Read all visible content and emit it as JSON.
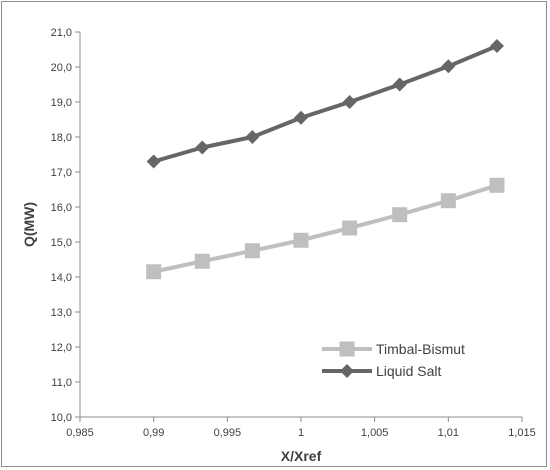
{
  "chart_data": {
    "type": "line",
    "xlabel": "X/Xref",
    "ylabel": "Q(MW)",
    "xlim": [
      0.985,
      1.015
    ],
    "ylim": [
      10.0,
      21.0
    ],
    "x_ticks": [
      "0,985",
      "0,99",
      "0,995",
      "1",
      "1,005",
      "1,01",
      "1,015"
    ],
    "y_ticks": [
      "10,0",
      "11,0",
      "12,0",
      "13,0",
      "14,0",
      "15,0",
      "16,0",
      "17,0",
      "18,0",
      "19,0",
      "20,0",
      "21,0"
    ],
    "grid": false,
    "legend": "bottom-right",
    "series": [
      {
        "name": "Timbal-Bismut",
        "marker": "square",
        "color": "#bfbfbf",
        "x": [
          0.99,
          0.9933,
          0.9967,
          1.0,
          1.0033,
          1.0067,
          1.01,
          1.0133
        ],
        "y": [
          14.15,
          14.45,
          14.75,
          15.05,
          15.4,
          15.78,
          16.18,
          16.62
        ]
      },
      {
        "name": "Liquid Salt",
        "marker": "diamond",
        "color": "#666666",
        "x": [
          0.99,
          0.9933,
          0.9967,
          1.0,
          1.0033,
          1.0067,
          1.01,
          1.0133
        ],
        "y": [
          17.3,
          17.7,
          18.0,
          18.55,
          19.0,
          19.5,
          20.02,
          20.6
        ]
      }
    ]
  }
}
